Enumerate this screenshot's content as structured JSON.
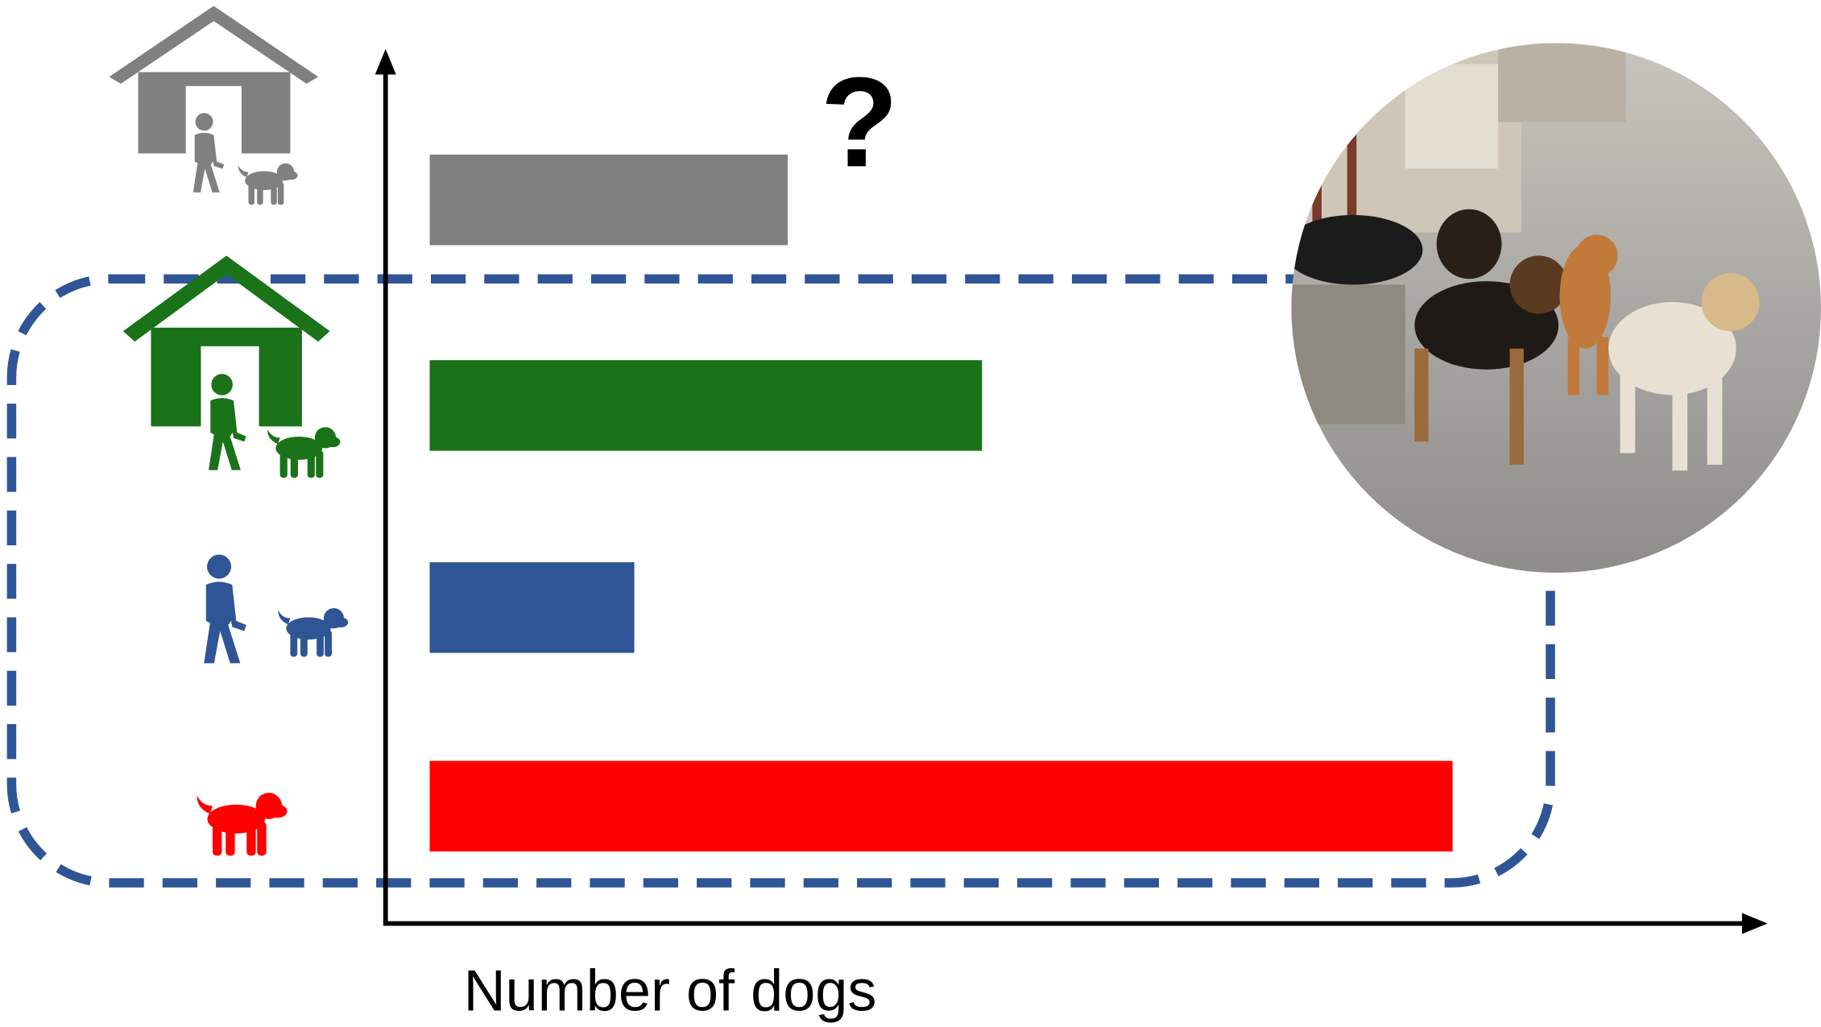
{
  "chart_data": {
    "type": "bar",
    "orientation": "horizontal",
    "categories": [
      null,
      null,
      null,
      null
    ],
    "values": [
      35,
      54,
      20,
      100
    ],
    "colors": [
      "#808080",
      "#1a7319",
      "#2f5597",
      "#ff0000"
    ],
    "xlim": [
      0,
      130
    ],
    "xlabel": "Number of dogs",
    "annotation": "?"
  }
}
